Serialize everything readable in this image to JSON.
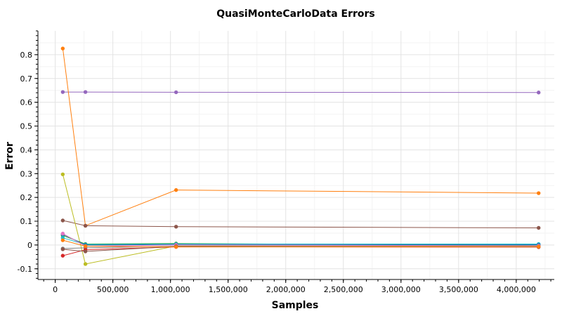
{
  "chart_data": {
    "type": "line",
    "title": "QuasiMonteCarloData Errors",
    "xlabel": "Samples",
    "ylabel": "Error",
    "xlim": [
      -150000,
      4330000
    ],
    "ylim": [
      -0.145,
      0.9
    ],
    "xticks": [
      0,
      500000,
      1000000,
      1500000,
      2000000,
      2500000,
      3000000,
      3500000,
      4000000
    ],
    "xtick_labels": [
      "0",
      "500,000",
      "1,000,000",
      "1,500,000",
      "2,000,000",
      "2,500,000",
      "3,000,000",
      "3,500,000",
      "4,000,000"
    ],
    "yticks": [
      -0.1,
      0,
      0.1,
      0.2,
      0.3,
      0.4,
      0.5,
      0.6,
      0.7,
      0.8
    ],
    "ytick_labels": [
      "-0.1",
      "0",
      "0.1",
      "0.2",
      "0.3",
      "0.4",
      "0.5",
      "0.6",
      "0.7",
      "0.8"
    ],
    "grid": true,
    "x": [
      65536,
      262144,
      1048576,
      4194304
    ],
    "series": [
      {
        "color": "#9467bd",
        "values": [
          0.643,
          0.643,
          0.642,
          0.641
        ]
      },
      {
        "color": "#ff7f0e",
        "values": [
          0.826,
          0.081,
          0.231,
          0.218
        ]
      },
      {
        "color": "#8c564b",
        "values": [
          0.103,
          0.081,
          0.077,
          0.072
        ]
      },
      {
        "color": "#bcbd22",
        "values": [
          0.297,
          -0.08,
          -0.004,
          -0.005
        ]
      },
      {
        "color": "#2ca02c",
        "values": [
          0.04,
          0.004,
          0.006,
          -0.002
        ]
      },
      {
        "color": "#17becf",
        "values": [
          0.03,
          0.002,
          0.004,
          0.004
        ]
      },
      {
        "color": "#1f77b4",
        "values": [
          0.045,
          0.0,
          0.002,
          0.001
        ]
      },
      {
        "color": "#e377c2",
        "values": [
          0.048,
          -0.005,
          0.0,
          -0.003
        ]
      },
      {
        "color": "#7f7f7f",
        "values": [
          -0.015,
          -0.012,
          -0.005,
          -0.006
        ]
      },
      {
        "color": "#d62728",
        "values": [
          -0.045,
          -0.02,
          -0.008,
          -0.009
        ]
      },
      {
        "color": "#8c564b",
        "values": [
          -0.018,
          -0.027,
          -0.006,
          -0.008
        ]
      },
      {
        "color": "#ff7f0e",
        "values": [
          0.02,
          -0.005,
          -0.008,
          -0.007
        ]
      }
    ]
  }
}
